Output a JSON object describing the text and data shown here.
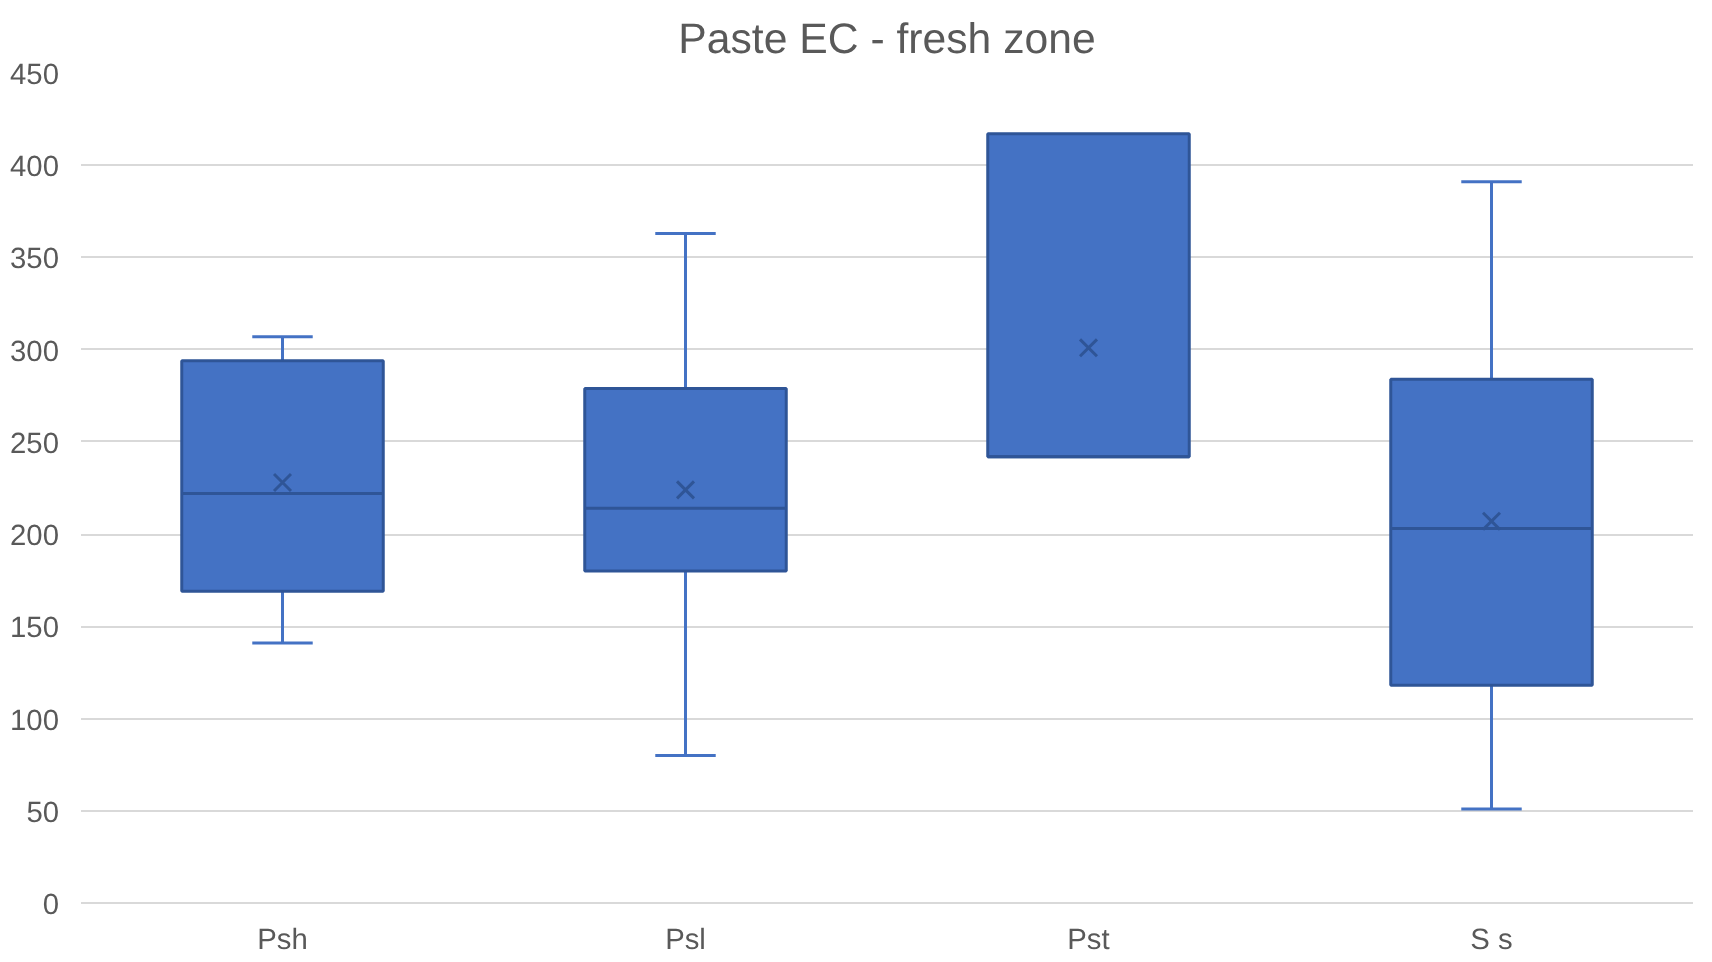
{
  "chart_data": {
    "type": "box",
    "title": "Paste EC - fresh zone",
    "categories": [
      "Psh",
      "Psl",
      "Pst",
      "S s"
    ],
    "color": "#4472c4",
    "boxes": [
      {
        "low": 141,
        "q1": 169,
        "median": 222,
        "q3": 294,
        "high": 307,
        "mean": 228
      },
      {
        "low": 80,
        "q1": 180,
        "median": 214,
        "q3": 279,
        "high": 363,
        "mean": 224
      },
      {
        "low": 242,
        "q1": 242,
        "median": 242,
        "q3": 417,
        "high": 417,
        "mean": 301
      },
      {
        "low": 51,
        "q1": 118,
        "median": 203,
        "q3": 284,
        "high": 391,
        "mean": 207
      }
    ],
    "ylim": [
      0,
      450
    ],
    "yticks": [
      0,
      50,
      100,
      150,
      200,
      250,
      300,
      350,
      400,
      450
    ],
    "grid": "y",
    "marker": "cross"
  }
}
